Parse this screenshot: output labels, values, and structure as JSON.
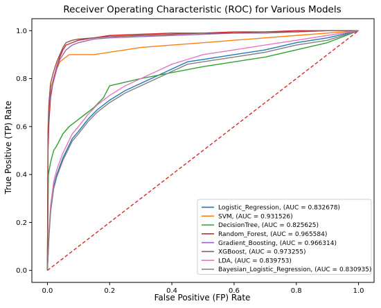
{
  "chart_data": {
    "type": "line",
    "title": "Receiver Operating Characteristic (ROC) for Various Models",
    "xlabel": "False Positive (FP) Rate",
    "ylabel": "True Positive (TP) Rate",
    "xlim": [
      -0.05,
      1.05
    ],
    "ylim": [
      -0.05,
      1.05
    ],
    "x_ticks": [
      0.0,
      0.2,
      0.4,
      0.6,
      0.8,
      1.0
    ],
    "y_ticks": [
      0.0,
      0.2,
      0.4,
      0.6,
      0.8,
      1.0
    ],
    "x_tick_labels": [
      "0.0",
      "0.2",
      "0.4",
      "0.6",
      "0.8",
      "1.0"
    ],
    "y_tick_labels": [
      "0.0",
      "0.2",
      "0.4",
      "0.6",
      "0.8",
      "1.0"
    ],
    "grid": false,
    "legend_position": "lower-right",
    "reference_line": {
      "x": [
        0,
        1
      ],
      "y": [
        0,
        1
      ],
      "color": "#d62728",
      "style": "dashed"
    },
    "series": [
      {
        "name": "Logistic_Regression, (AUC = 0.832678)",
        "color": "#1f77b4",
        "x": [
          0,
          0.005,
          0.01,
          0.02,
          0.03,
          0.05,
          0.08,
          0.1,
          0.13,
          0.16,
          0.2,
          0.25,
          0.3,
          0.35,
          0.4,
          0.45,
          0.5,
          0.6,
          0.7,
          0.8,
          0.9,
          1.0
        ],
        "y": [
          0,
          0.15,
          0.25,
          0.35,
          0.4,
          0.47,
          0.55,
          0.58,
          0.63,
          0.67,
          0.71,
          0.75,
          0.78,
          0.81,
          0.84,
          0.87,
          0.88,
          0.9,
          0.92,
          0.95,
          0.97,
          1.0
        ]
      },
      {
        "name": "SVM, (AUC = 0.931526)",
        "color": "#ff7f0e",
        "x": [
          0,
          0.002,
          0.005,
          0.01,
          0.02,
          0.03,
          0.04,
          0.05,
          0.07,
          0.1,
          0.15,
          0.2,
          0.25,
          0.3,
          0.4,
          0.5,
          0.6,
          0.7,
          0.8,
          0.9,
          1.0
        ],
        "y": [
          0,
          0.6,
          0.7,
          0.76,
          0.8,
          0.84,
          0.87,
          0.88,
          0.9,
          0.9,
          0.9,
          0.91,
          0.92,
          0.93,
          0.94,
          0.95,
          0.96,
          0.97,
          0.98,
          0.99,
          1.0
        ]
      },
      {
        "name": "DecisionTree, (AUC = 0.825625)",
        "color": "#2ca02c",
        "x": [
          0,
          0.003,
          0.01,
          0.02,
          0.03,
          0.05,
          0.07,
          0.1,
          0.15,
          0.18,
          0.2,
          0.3,
          0.5,
          0.7,
          0.8,
          0.9,
          1.0
        ],
        "y": [
          0,
          0.4,
          0.45,
          0.5,
          0.52,
          0.57,
          0.6,
          0.63,
          0.68,
          0.72,
          0.77,
          0.8,
          0.85,
          0.89,
          0.92,
          0.95,
          1.0
        ]
      },
      {
        "name": "Random_Forest, (AUC = 0.965584)",
        "color": "#d62728",
        "x": [
          0,
          0.002,
          0.005,
          0.01,
          0.02,
          0.03,
          0.04,
          0.05,
          0.06,
          0.08,
          0.1,
          0.15,
          0.2,
          0.3,
          0.4,
          0.5,
          0.6,
          0.7,
          0.8,
          0.9,
          1.0
        ],
        "y": [
          0,
          0.5,
          0.62,
          0.72,
          0.8,
          0.85,
          0.89,
          0.92,
          0.94,
          0.95,
          0.96,
          0.97,
          0.98,
          0.985,
          0.99,
          0.99,
          0.995,
          0.995,
          1.0,
          1.0,
          1.0
        ]
      },
      {
        "name": "Gradient_Boosting, (AUC = 0.966314)",
        "color": "#9467bd",
        "x": [
          0,
          0.002,
          0.005,
          0.01,
          0.02,
          0.03,
          0.04,
          0.05,
          0.06,
          0.08,
          0.1,
          0.15,
          0.2,
          0.3,
          0.4,
          0.5,
          0.6,
          0.7,
          0.8,
          0.9,
          1.0
        ],
        "y": [
          0,
          0.55,
          0.66,
          0.74,
          0.79,
          0.84,
          0.88,
          0.9,
          0.92,
          0.94,
          0.95,
          0.965,
          0.97,
          0.975,
          0.98,
          0.985,
          0.99,
          0.99,
          0.995,
          1.0,
          1.0
        ]
      },
      {
        "name": "XGBoost, (AUC = 0.973255)",
        "color": "#8c564b",
        "x": [
          0,
          0.002,
          0.005,
          0.01,
          0.02,
          0.03,
          0.04,
          0.05,
          0.06,
          0.08,
          0.1,
          0.15,
          0.2,
          0.3,
          0.4,
          0.5,
          0.6,
          0.7,
          0.8,
          0.9,
          1.0
        ],
        "y": [
          0,
          0.58,
          0.7,
          0.78,
          0.83,
          0.87,
          0.9,
          0.93,
          0.95,
          0.96,
          0.965,
          0.97,
          0.975,
          0.98,
          0.985,
          0.99,
          0.99,
          0.995,
          0.995,
          1.0,
          1.0
        ]
      },
      {
        "name": "LDA, (AUC = 0.839753)",
        "color": "#e377c2",
        "x": [
          0,
          0.005,
          0.01,
          0.02,
          0.03,
          0.05,
          0.08,
          0.1,
          0.13,
          0.16,
          0.2,
          0.25,
          0.3,
          0.35,
          0.4,
          0.45,
          0.5,
          0.6,
          0.7,
          0.8,
          0.9,
          1.0
        ],
        "y": [
          0,
          0.16,
          0.27,
          0.37,
          0.42,
          0.49,
          0.57,
          0.6,
          0.65,
          0.69,
          0.73,
          0.77,
          0.8,
          0.83,
          0.86,
          0.88,
          0.9,
          0.92,
          0.94,
          0.96,
          0.98,
          1.0
        ]
      },
      {
        "name": "Bayesian_Logistic_Regression, (AUC = 0.830935)",
        "color": "#7f7f7f",
        "x": [
          0,
          0.005,
          0.01,
          0.02,
          0.03,
          0.05,
          0.08,
          0.1,
          0.13,
          0.16,
          0.2,
          0.25,
          0.3,
          0.35,
          0.4,
          0.45,
          0.5,
          0.6,
          0.7,
          0.8,
          0.9,
          1.0
        ],
        "y": [
          0,
          0.14,
          0.24,
          0.34,
          0.39,
          0.46,
          0.54,
          0.57,
          0.62,
          0.66,
          0.7,
          0.74,
          0.77,
          0.8,
          0.83,
          0.86,
          0.87,
          0.89,
          0.91,
          0.94,
          0.96,
          1.0
        ]
      }
    ]
  }
}
